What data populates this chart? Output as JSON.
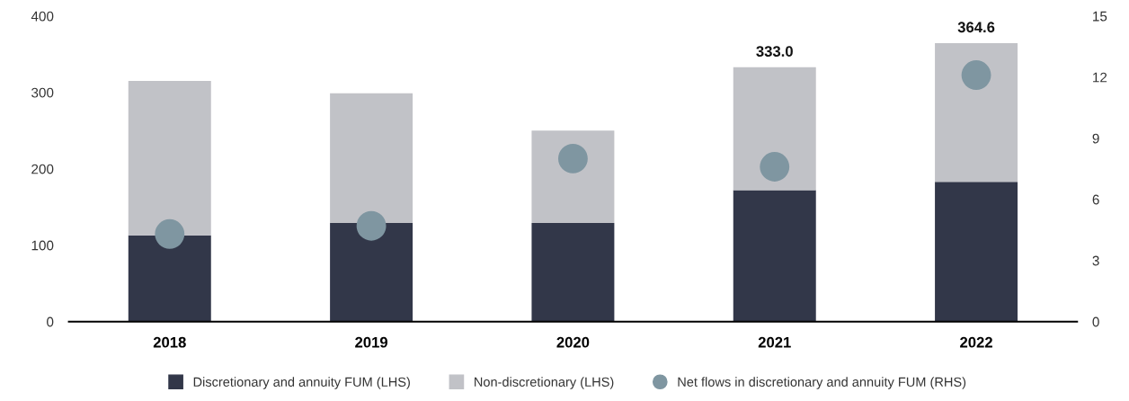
{
  "chart_data": {
    "type": "bar",
    "stacked": true,
    "categories": [
      "2018",
      "2019",
      "2020",
      "2021",
      "2022"
    ],
    "series": [
      {
        "name": "Discretionary and annuity FUM (LHS)",
        "color": "#323749",
        "values": [
          113,
          129,
          129,
          172,
          183
        ]
      },
      {
        "name": "Non-discretionary (LHS)",
        "color": "#c1c2c7",
        "values": [
          202,
          170,
          121,
          161,
          181.6
        ]
      },
      {
        "name": "Net flows in discretionary and annuity FUM (RHS)",
        "type": "scatter",
        "axis": "y2",
        "color": "#7f96a1",
        "marker": "circle",
        "values": [
          4.3,
          4.7,
          8.0,
          7.6,
          12.1
        ]
      }
    ],
    "totals": [
      null,
      null,
      null,
      "333.0",
      "364.6"
    ],
    "ylim": [
      0,
      400
    ],
    "yticks": [
      0,
      100,
      200,
      300,
      400
    ],
    "y2lim": [
      0,
      15
    ],
    "y2ticks": [
      0,
      3,
      6,
      9,
      12,
      15
    ],
    "grid": false,
    "legend": "bottom"
  }
}
